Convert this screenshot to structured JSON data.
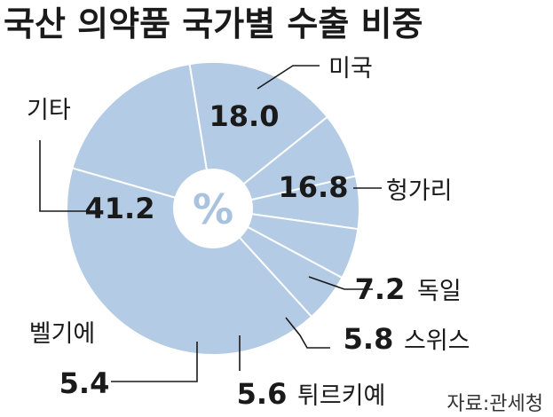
{
  "chart_data": {
    "type": "pie",
    "title": "국산 의약품 국가별 수출 비중",
    "unit_symbol": "%",
    "source": "자료:관세청",
    "categories": [
      "미국",
      "헝가리",
      "독일",
      "스위스",
      "튀르키예",
      "벨기에",
      "기타"
    ],
    "values": [
      18.0,
      16.8,
      7.2,
      5.8,
      5.6,
      5.4,
      41.2
    ],
    "value_labels": [
      "18.0",
      "16.8",
      "7.2",
      "5.8",
      "5.6",
      "5.4",
      "41.2"
    ],
    "colors": {
      "slice": "#b3cbe4",
      "separator": "#ffffff",
      "text": "#1a1a1a",
      "leader": "#1a1a1a",
      "center_symbol": "#a9c2dd"
    }
  }
}
